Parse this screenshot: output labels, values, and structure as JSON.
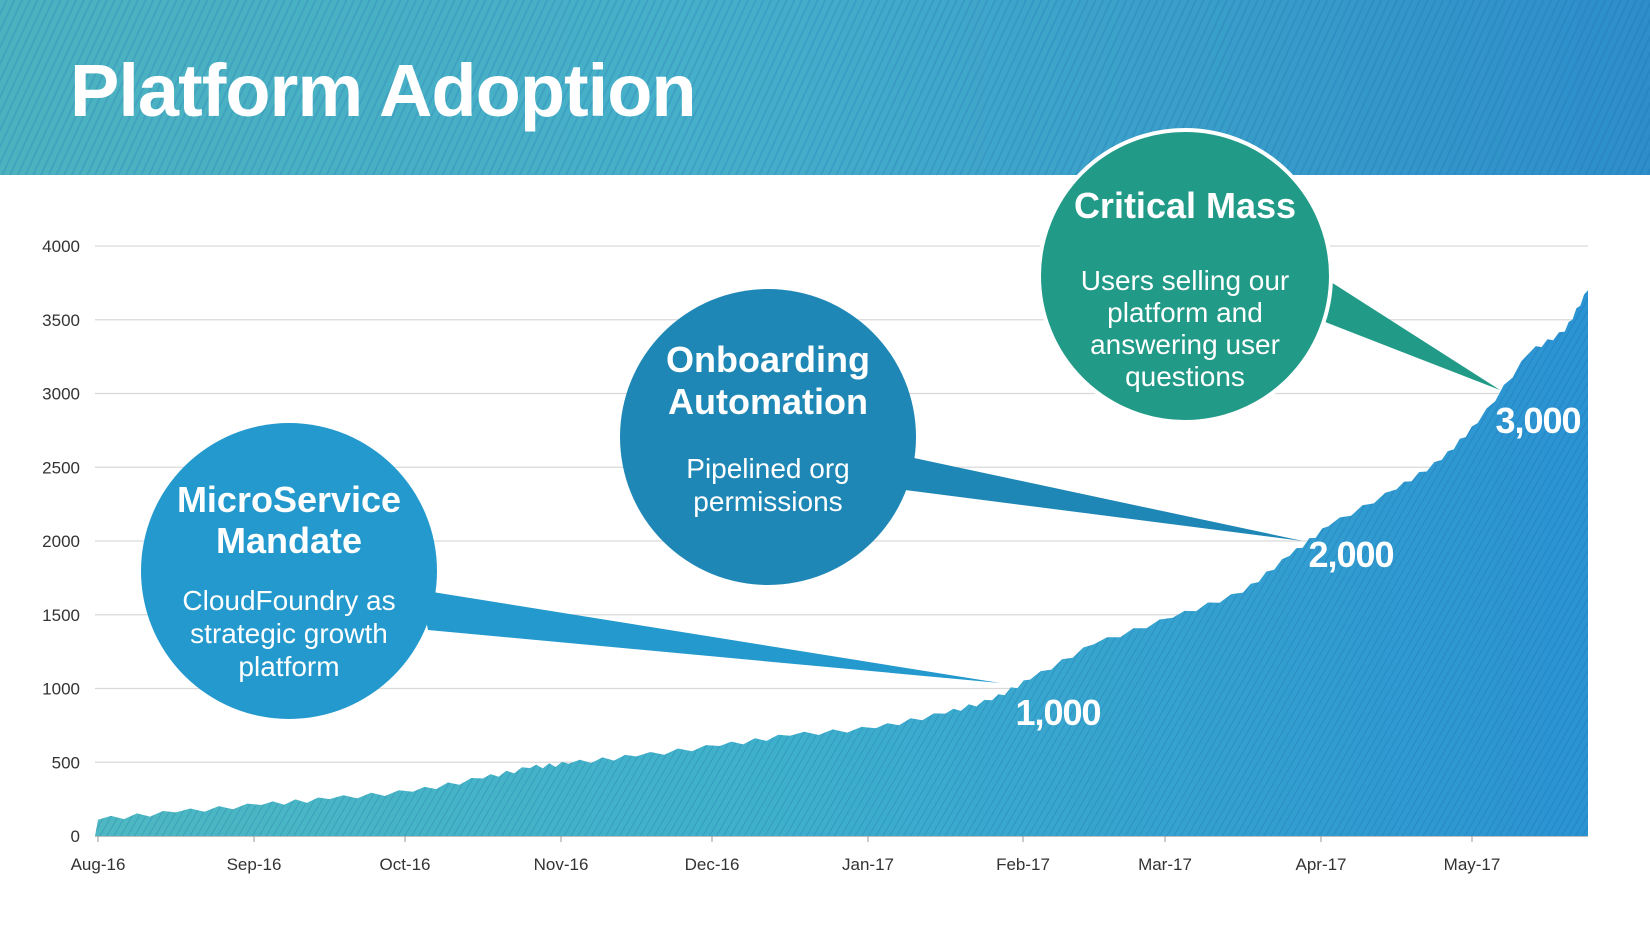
{
  "title": "Platform Adoption",
  "chart_data": {
    "type": "area",
    "title": "Platform Adoption",
    "xlabel": "",
    "ylabel": "",
    "ylim": [
      0,
      4000
    ],
    "y_ticks": [
      0,
      500,
      1000,
      1500,
      2000,
      2500,
      3000,
      3500,
      4000
    ],
    "x_ticks": [
      "Aug-16",
      "Sep-16",
      "Oct-16",
      "Nov-16",
      "Dec-16",
      "Jan-17",
      "Feb-17",
      "Mar-17",
      "Apr-17",
      "May-17"
    ],
    "grid": true,
    "series": [
      {
        "values": [
          [
            "Aug-16",
            110
          ],
          [
            "Aug-16 mid",
            160
          ],
          [
            "Sep-16 start",
            210
          ],
          [
            "Sep-16 mid",
            250
          ],
          [
            "Oct-16 start",
            300
          ],
          [
            "Oct-16 mid",
            390
          ],
          [
            "Oct-16 late",
            460
          ],
          [
            "Nov-16 start",
            490
          ],
          [
            "Nov-16 mid",
            540
          ],
          [
            "Dec-16 start",
            610
          ],
          [
            "Dec-16 mid",
            680
          ],
          [
            "Jan-17 start",
            730
          ],
          [
            "Jan-17 mid",
            830
          ],
          [
            "Jan-17 late",
            920
          ],
          [
            "Feb-17 start",
            1060
          ],
          [
            "Feb-17 mid",
            1300
          ],
          [
            "Mar-17 start",
            1480
          ],
          [
            "Mar-17 mid",
            1650
          ],
          [
            "Mar-17 late",
            1900
          ],
          [
            "Apr-17 start",
            2100
          ],
          [
            "Apr-17 mid",
            2350
          ],
          [
            "Apr-17 late",
            2550
          ],
          [
            "May-17 start",
            2800
          ],
          [
            "May-17 mid",
            3280
          ],
          [
            "May-17 late",
            3420
          ],
          [
            "Jun-17 start",
            3700
          ]
        ],
        "color": "#2e9bd0"
      }
    ],
    "milestones": [
      {
        "label": "1,000",
        "x": "Feb-17 start",
        "y": 1000
      },
      {
        "label": "2,000",
        "x": "Apr-17 start",
        "y": 2000
      },
      {
        "label": "3,000",
        "x": "May-17 mid",
        "y": 3000
      }
    ],
    "annotations": [
      {
        "title_lines": [
          "MicroService",
          "Mandate"
        ],
        "body_lines": [
          "CloudFoundry as",
          "strategic growth",
          "platform"
        ],
        "color": "#2399cd"
      },
      {
        "title_lines": [
          "Onboarding",
          "Automation"
        ],
        "body_lines": [
          "Pipelined org",
          "permissions"
        ],
        "color": "#1e87b6"
      },
      {
        "title_lines": [
          "Critical Mass"
        ],
        "body_lines": [
          "Users selling our",
          "platform and",
          "answering user",
          "questions"
        ],
        "color": "#219a87"
      }
    ]
  }
}
